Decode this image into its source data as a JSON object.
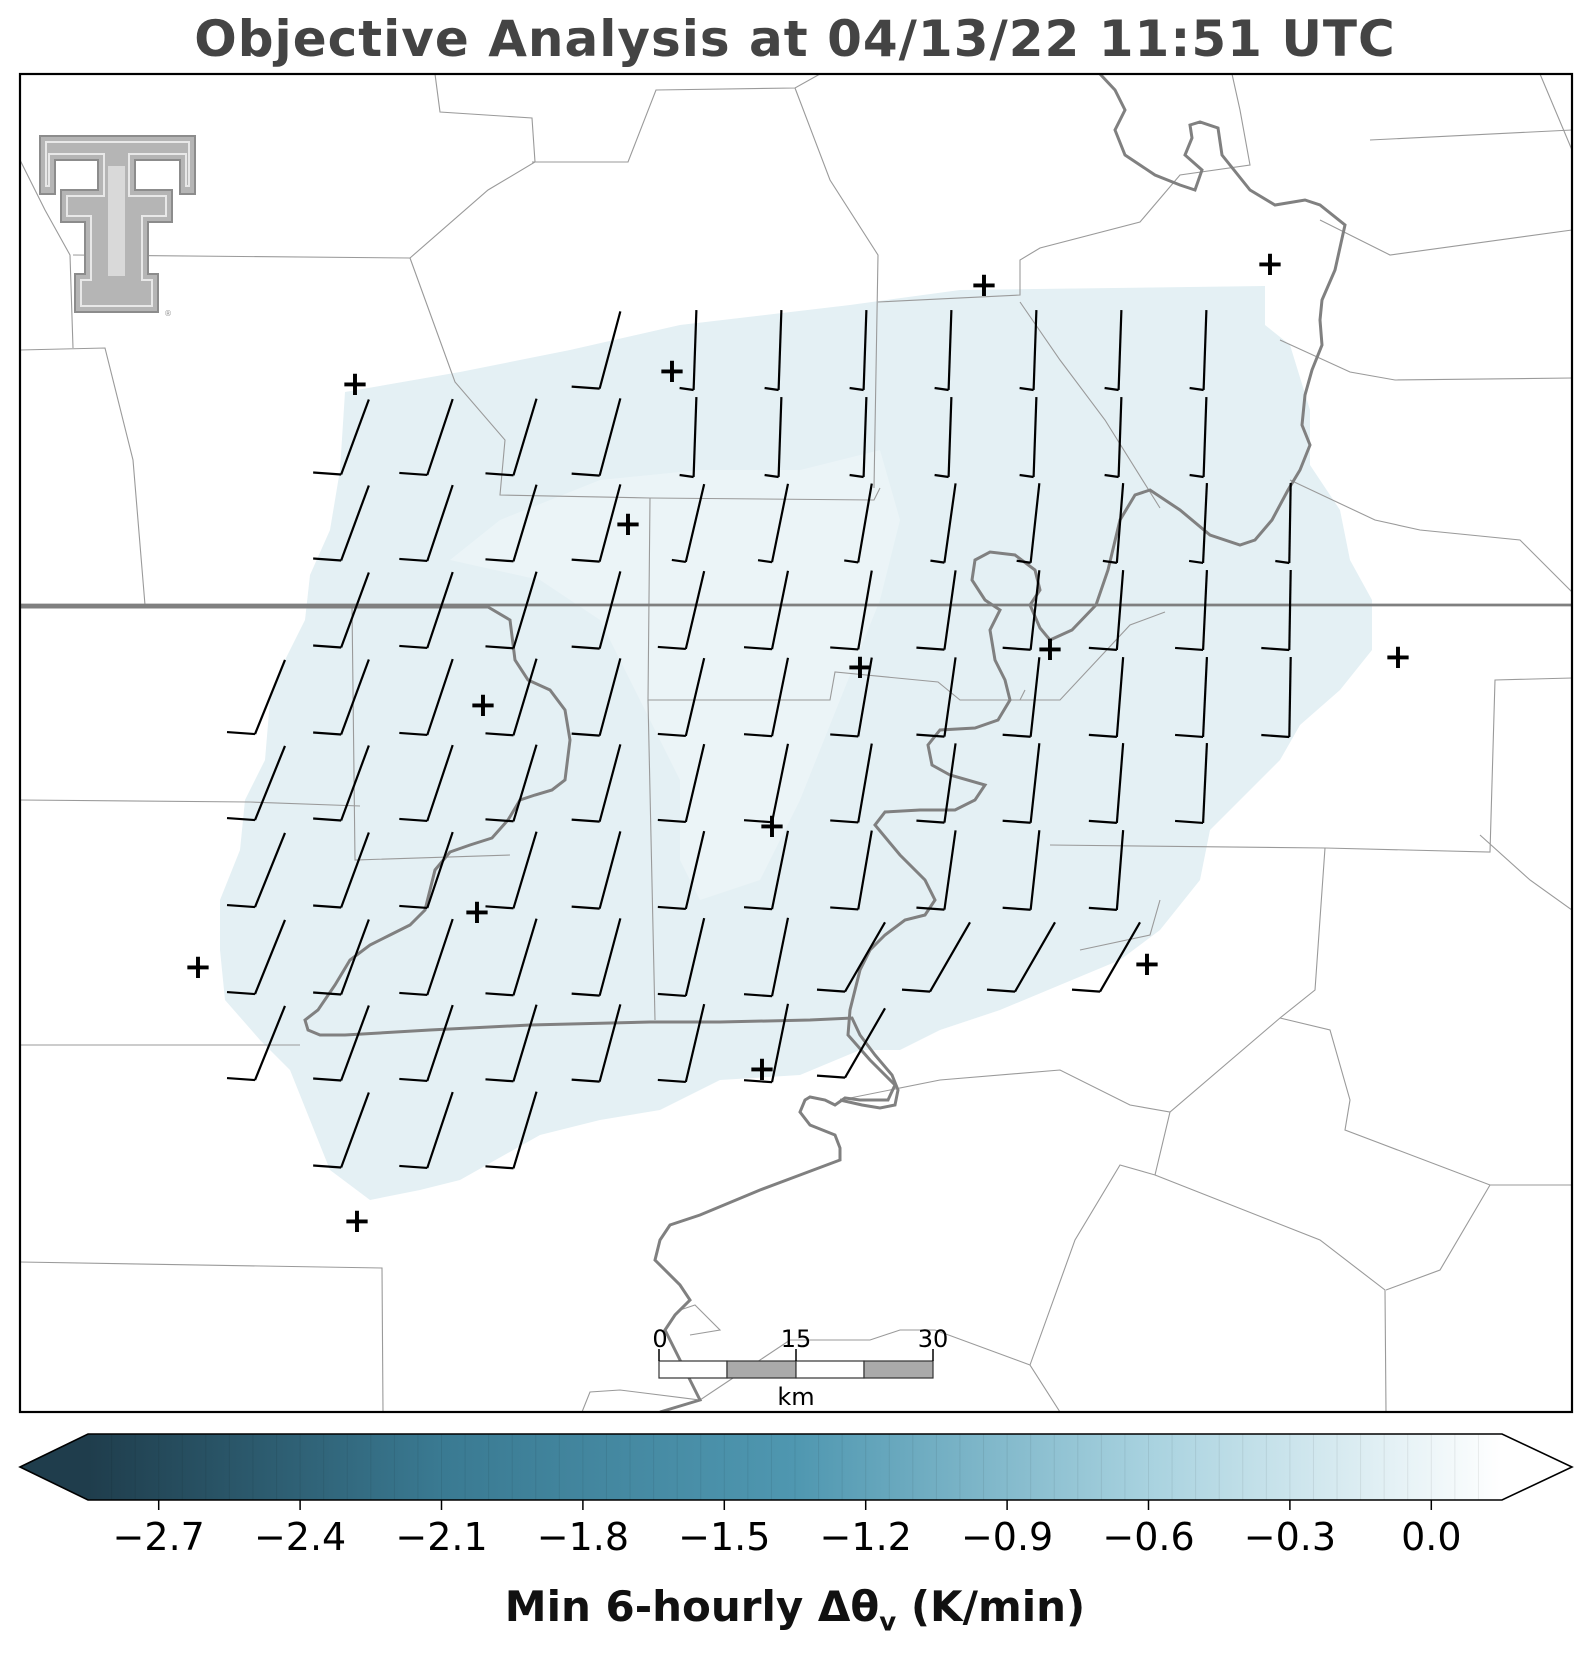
{
  "title": "Objective Analysis at 04/13/22 11:51 UTC",
  "colorbar": {
    "label_main": "Min 6-hourly Δθ",
    "label_sub": "v",
    "label_units": " (K/min)",
    "ticks": [
      "−2.7",
      "−2.4",
      "−2.1",
      "−1.8",
      "−1.5",
      "−1.2",
      "−0.9",
      "−0.6",
      "−0.3",
      "0.0"
    ],
    "tick_values": [
      -2.7,
      -2.4,
      -2.1,
      -1.8,
      -1.5,
      -1.2,
      -0.9,
      -0.6,
      -0.3,
      0.0
    ],
    "range": [
      -2.85,
      0.15
    ],
    "colors": [
      "#1f3d4c",
      "#3a7a92",
      "#4f97b0",
      "#a8d2df",
      "#ffffff"
    ],
    "extend": "both"
  },
  "scale_bar": {
    "labels": [
      "0",
      "15",
      "30"
    ],
    "unit": "km"
  },
  "logo": {
    "name": "Texas Tech Double T",
    "mark": "®"
  },
  "analysis_field": {
    "value_range": [
      -0.15,
      -0.05
    ],
    "fill_color": "#e4f0f4",
    "inner_color": "#ebf4f7"
  },
  "colors": {
    "river": "#808080",
    "state_border": "#7f7f7f",
    "county_lines": "#9a9a9a",
    "barbs": "#000000",
    "stations": "#000000"
  }
}
